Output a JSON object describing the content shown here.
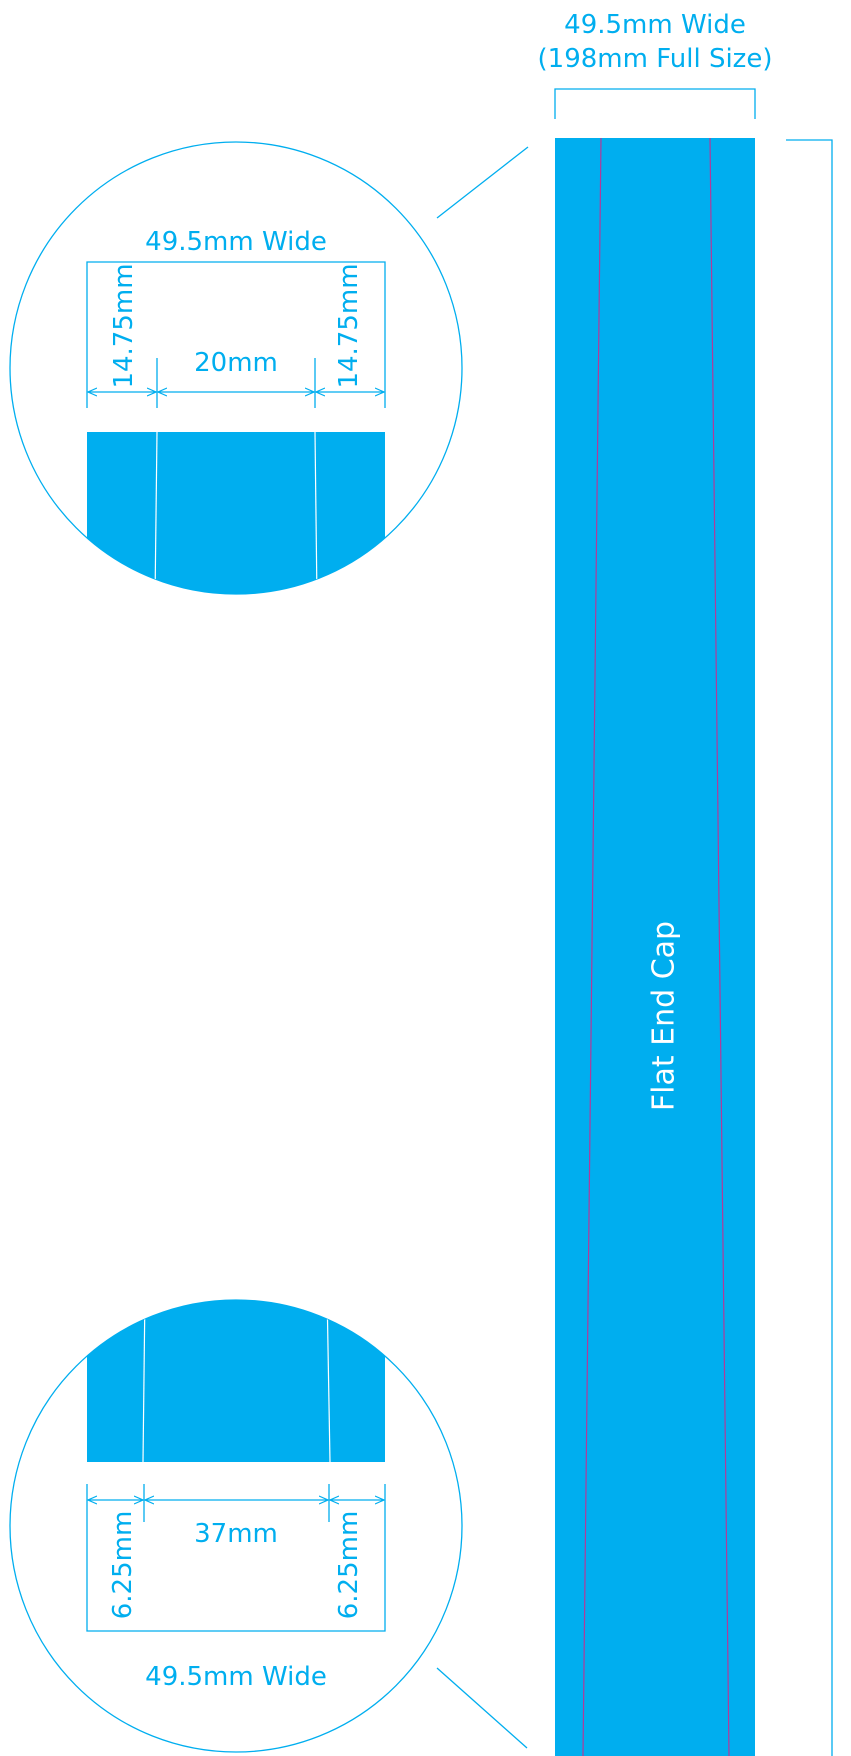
{
  "colors": {
    "accent": "#00aeef",
    "fold_line": "#b23a9a",
    "background": "#ffffff",
    "label_on_strip": "#ffffff"
  },
  "strip": {
    "width_label": "49.5mm Wide",
    "full_size_label": "(198mm Full Size)",
    "center_label": "Flat End Cap"
  },
  "top_detail": {
    "width_label": "49.5mm Wide",
    "left_margin_label": "14.75mm",
    "center_label": "20mm",
    "right_margin_label": "14.75mm"
  },
  "bottom_detail": {
    "width_label": "49.5mm Wide",
    "left_margin_label": "6.25mm",
    "center_label": "37mm",
    "right_margin_label": "6.25mm"
  }
}
